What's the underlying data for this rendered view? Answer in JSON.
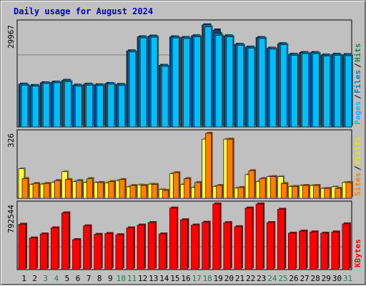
{
  "chart_data": {
    "type": "bar",
    "title": "Daily usage for August 2024",
    "categories": [
      "1",
      "2",
      "3",
      "4",
      "5",
      "6",
      "7",
      "8",
      "9",
      "10",
      "11",
      "12",
      "13",
      "14",
      "15",
      "16",
      "17",
      "18",
      "19",
      "20",
      "21",
      "22",
      "23",
      "24",
      "25",
      "26",
      "27",
      "28",
      "29",
      "30",
      "31"
    ],
    "weekend_days": [
      "3",
      "4",
      "10",
      "11",
      "17",
      "18",
      "24",
      "25",
      "31"
    ],
    "colors": {
      "pages": "#1a3a8a",
      "files": "#0080c0",
      "hits": "#00bfff",
      "sites": "#ff8000",
      "visits": "#ffff40",
      "kbytes": "#ff0000",
      "weekday_label": "#000000",
      "weekend_label": "#1a8050",
      "title": "#0000bb"
    },
    "panels": [
      {
        "id": "hits-files-pages",
        "ymax_label": "29967",
        "ylim": [
          0,
          29967
        ],
        "side_labels": [
          {
            "text": "Pages",
            "color": "#00bfff"
          },
          {
            "text": "/",
            "color": "#000000"
          },
          {
            "text": "Files",
            "color": "#0080c0"
          },
          {
            "text": "/",
            "color": "#000000"
          },
          {
            "text": "Hits",
            "color": "#1a8050"
          }
        ],
        "series": [
          {
            "name": "Pages",
            "key": "pages",
            "values": [
              12500,
              12100,
              12900,
              13100,
              13600,
              12200,
              12500,
              12300,
              12700,
              12400,
              22200,
              26300,
              26500,
              18000,
              26300,
              26100,
              26600,
              29800,
              28300,
              26600,
              24100,
              23300,
              26100,
              23000,
              24300,
              21200,
              21700,
              21700,
              21000,
              21200,
              21100
            ]
          },
          {
            "name": "Files",
            "key": "files",
            "values": [
              12500,
              12100,
              12900,
              13100,
              13600,
              12200,
              12500,
              12300,
              12700,
              12400,
              22200,
              26300,
              26500,
              18000,
              26300,
              26100,
              26600,
              29800,
              27300,
              26600,
              24100,
              23300,
              26100,
              23000,
              24300,
              21200,
              21700,
              21700,
              21000,
              21200,
              21100
            ]
          },
          {
            "name": "Hits",
            "key": "hits",
            "values": [
              12200,
              11900,
              12700,
              12900,
              13200,
              11900,
              12200,
              12100,
              12500,
              12100,
              21900,
              26000,
              26200,
              17700,
              26000,
              25800,
              26300,
              29200,
              26700,
              26300,
              23800,
              23000,
              25800,
              22700,
              24000,
              20900,
              21400,
              21400,
              20700,
              20900,
              20800
            ]
          }
        ]
      },
      {
        "id": "sites-visits",
        "ymax_label": "326",
        "ylim": [
          0,
          326
        ],
        "side_labels": [
          {
            "text": "Sites",
            "color": "#ff8000"
          },
          {
            "text": "/",
            "color": "#000000"
          },
          {
            "text": "Visits",
            "color": "#e8e800"
          }
        ],
        "series": [
          {
            "name": "Visits",
            "key": "visits",
            "values": [
              150,
              70,
              72,
              80,
              135,
              85,
              80,
              80,
              78,
              90,
              58,
              68,
              72,
              45,
              125,
              70,
              55,
              300,
              60,
              300,
              52,
              120,
              85,
              110,
              110,
              60,
              65,
              65,
              50,
              58,
              80
            ]
          },
          {
            "name": "Sites",
            "key": "sites",
            "values": [
              100,
              75,
              75,
              90,
              95,
              90,
              100,
              80,
              85,
              95,
              65,
              65,
              70,
              40,
              130,
              100,
              80,
              330,
              65,
              300,
              55,
              140,
              100,
              110,
              75,
              60,
              65,
              65,
              50,
              50,
              80
            ]
          }
        ]
      },
      {
        "id": "kbytes",
        "ymax_label": "792544",
        "ylim": [
          0,
          792544
        ],
        "side_labels": [
          {
            "text": "KBytes",
            "color": "#ff0000"
          }
        ],
        "series": [
          {
            "name": "KBytes",
            "key": "kbytes",
            "values": [
              560000,
              390000,
              440000,
              515000,
              700000,
              370000,
              540000,
              435000,
              445000,
              430000,
              515000,
              550000,
              580000,
              440000,
              760000,
              615000,
              550000,
              585000,
              810000,
              580000,
              530000,
              760000,
              810000,
              580000,
              745000,
              450000,
              475000,
              465000,
              450000,
              465000,
              565000
            ]
          }
        ]
      }
    ]
  }
}
